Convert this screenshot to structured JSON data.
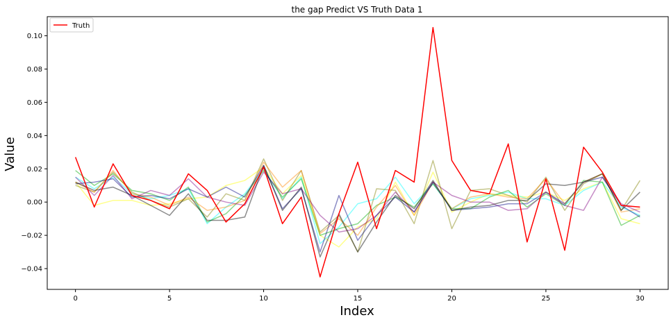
{
  "chart_data": {
    "type": "line",
    "title": "the gap Predict VS Truth Data 1",
    "xlabel": "Index",
    "ylabel": "Value",
    "xlim": [
      -1.5,
      31.5
    ],
    "ylim": [
      -0.0525,
      0.1115
    ],
    "x_ticks": [
      0,
      5,
      10,
      15,
      20,
      25,
      30
    ],
    "y_ticks": [
      -0.04,
      -0.02,
      0.0,
      0.02,
      0.04,
      0.06,
      0.08,
      0.1
    ],
    "y_tick_labels": [
      "−0.04",
      "−0.02",
      "0.00",
      "0.02",
      "0.04",
      "0.06",
      "0.08",
      "0.10"
    ],
    "grid": false,
    "legend": {
      "position": "top-left",
      "entries": [
        "Truth"
      ]
    },
    "x": [
      0,
      1,
      2,
      3,
      4,
      5,
      6,
      7,
      8,
      9,
      10,
      11,
      12,
      13,
      14,
      15,
      16,
      17,
      18,
      19,
      20,
      21,
      22,
      23,
      24,
      25,
      26,
      27,
      28,
      29,
      30
    ],
    "truth": {
      "name": "Truth",
      "color": "#ff0000",
      "values": [
        0.027,
        -0.003,
        0.023,
        0.004,
        0.001,
        -0.004,
        0.017,
        0.007,
        -0.012,
        -0.001,
        0.021,
        -0.013,
        0.003,
        -0.045,
        -0.007,
        0.024,
        -0.016,
        0.019,
        0.012,
        0.105,
        0.025,
        0.007,
        0.005,
        0.035,
        -0.024,
        0.014,
        -0.029,
        0.033,
        0.018,
        -0.002,
        -0.003
      ]
    },
    "predictions": [
      {
        "color": "#ffff00",
        "values": [
          0.012,
          -0.002,
          0.001,
          0.001,
          -0.002,
          -0.001,
          0.002,
          0.003,
          0.01,
          0.013,
          0.021,
          0.005,
          0.016,
          -0.02,
          -0.027,
          -0.015,
          -0.01,
          0.012,
          -0.008,
          0.018,
          -0.006,
          0.0,
          0.005,
          0.004,
          0.003,
          0.006,
          0.001,
          0.008,
          0.012,
          -0.01,
          -0.013
        ]
      },
      {
        "color": "#00ffff",
        "values": [
          0.015,
          0.008,
          0.015,
          0.005,
          0.002,
          0.004,
          0.008,
          -0.013,
          -0.003,
          0.005,
          0.02,
          0.002,
          0.015,
          -0.025,
          -0.015,
          -0.001,
          0.002,
          0.015,
          -0.001,
          0.011,
          -0.004,
          0.002,
          0.004,
          0.006,
          0.002,
          0.002,
          -0.002,
          0.007,
          0.012,
          -0.003,
          -0.008
        ]
      },
      {
        "color": "#00aa00",
        "values": [
          0.019,
          0.01,
          0.017,
          0.007,
          0.005,
          0.001,
          0.009,
          -0.012,
          -0.007,
          0.004,
          0.019,
          0.003,
          0.014,
          -0.02,
          -0.016,
          -0.013,
          -0.002,
          0.003,
          -0.003,
          0.011,
          -0.004,
          -0.004,
          0.003,
          0.007,
          -0.003,
          0.005,
          -0.002,
          0.013,
          0.012,
          -0.014,
          -0.008
        ]
      },
      {
        "color": "#808000",
        "values": [
          0.01,
          0.006,
          0.018,
          0.006,
          0.001,
          -0.003,
          0.002,
          -0.009,
          0.005,
          0.001,
          0.026,
          0.001,
          0.019,
          -0.018,
          -0.008,
          -0.03,
          0.008,
          0.007,
          -0.013,
          0.025,
          -0.016,
          0.007,
          0.008,
          0.004,
          0.0,
          0.015,
          -0.005,
          0.011,
          0.017,
          -0.005,
          0.013
        ]
      },
      {
        "color": "#ff8800",
        "values": [
          0.012,
          0.006,
          0.019,
          0.005,
          0.003,
          -0.002,
          0.003,
          -0.005,
          -0.003,
          0.001,
          0.024,
          0.009,
          0.019,
          -0.019,
          -0.01,
          -0.02,
          -0.003,
          0.01,
          -0.008,
          0.012,
          -0.004,
          0.003,
          0.005,
          0.003,
          0.002,
          0.014,
          -0.001,
          0.012,
          0.017,
          -0.006,
          -0.004
        ]
      },
      {
        "color": "#800080",
        "values": [
          0.015,
          0.004,
          0.016,
          0.002,
          0.007,
          0.004,
          0.014,
          0.003,
          0.0,
          -0.002,
          0.018,
          0.005,
          0.008,
          -0.008,
          -0.018,
          -0.016,
          -0.008,
          0.006,
          -0.006,
          0.012,
          0.004,
          0.0,
          0.0,
          -0.005,
          -0.004,
          0.006,
          -0.002,
          -0.005,
          0.015,
          -0.001,
          -0.006
        ]
      },
      {
        "color": "#000080",
        "values": [
          0.011,
          0.012,
          0.014,
          0.003,
          0.004,
          0.002,
          0.008,
          0.003,
          0.009,
          0.003,
          0.022,
          -0.004,
          0.008,
          -0.03,
          0.004,
          -0.023,
          -0.008,
          0.003,
          -0.006,
          0.012,
          -0.005,
          -0.004,
          -0.003,
          -0.001,
          -0.001,
          0.006,
          -0.001,
          0.012,
          0.015,
          -0.002,
          -0.009
        ]
      },
      {
        "color": "#000000",
        "values": [
          0.012,
          0.007,
          0.009,
          0.004,
          -0.002,
          -0.008,
          0.005,
          -0.011,
          -0.011,
          -0.009,
          0.022,
          -0.005,
          0.009,
          -0.033,
          -0.007,
          -0.03,
          -0.012,
          0.004,
          -0.004,
          0.013,
          -0.005,
          -0.003,
          -0.002,
          0.001,
          0.001,
          0.011,
          0.01,
          0.012,
          0.017,
          -0.005,
          0.006
        ]
      }
    ]
  }
}
